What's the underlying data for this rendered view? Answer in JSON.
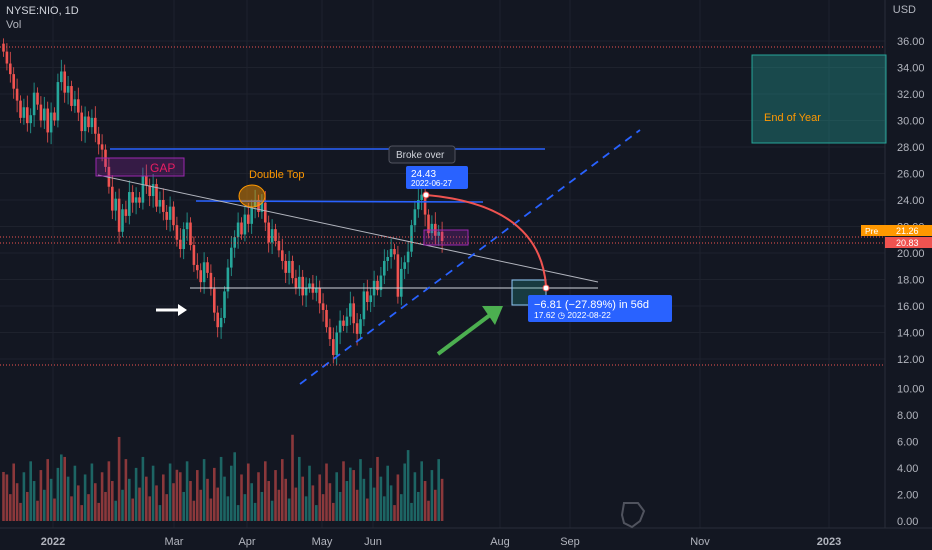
{
  "header": {
    "symbol": "NYSE:NIO, 1D",
    "volume_label": "Vol",
    "currency": "USD"
  },
  "price_axis": {
    "ticks": [
      "36.00",
      "34.00",
      "32.00",
      "30.00",
      "28.00",
      "26.00",
      "24.00",
      "22.00",
      "20.00",
      "18.00",
      "16.00",
      "14.00",
      "12.00"
    ]
  },
  "volume_axis": {
    "ticks": [
      "10.00",
      "8.00",
      "6.00",
      "4.00",
      "2.00",
      "0.00"
    ]
  },
  "time_axis": {
    "ticks": [
      "2022",
      "Mar",
      "Apr",
      "May",
      "Jun",
      "Aug",
      "Sep",
      "Nov",
      "2023"
    ]
  },
  "price_badges": {
    "pre_label": "Pre",
    "pre_value": "21.26",
    "last_value": "20.83"
  },
  "annotations": {
    "gap": "GAP",
    "double_top": "Double Top",
    "broke_over": "Broke over",
    "end_of_year": "End of Year",
    "price_label_value": "24.43",
    "price_label_date": "2022-06-27",
    "measure_line1": "−6.81 (−27.89%) in 56d",
    "measure_line2": "17.62 ◷ 2022-08-22"
  },
  "colors": {
    "up": "#26a69a",
    "down": "#ef5350",
    "blue": "#2962ff",
    "dashed": "#2962ff",
    "green_arrow": "#4caf50",
    "grid": "#1e222d"
  },
  "chart_data": {
    "type": "candlestick",
    "y_label": "USD",
    "ylim": [
      11,
      37
    ],
    "x_ticks": [
      "2022",
      "Mar",
      "Apr",
      "May",
      "Jun",
      "Aug",
      "Sep",
      "Nov",
      "2023"
    ],
    "closes": [
      35.2,
      34.3,
      33.5,
      32.4,
      31.5,
      30.2,
      31.0,
      29.8,
      30.4,
      32.1,
      31.2,
      30.0,
      30.9,
      29.1,
      30.6,
      30.0,
      32.9,
      33.7,
      32.1,
      32.6,
      31.1,
      31.6,
      30.6,
      29.2,
      30.3,
      29.5,
      30.2,
      29.0,
      28.2,
      27.8,
      26.5,
      25.0,
      23.2,
      24.1,
      21.6,
      23.3,
      22.8,
      24.6,
      23.8,
      24.2,
      23.8,
      25.8,
      25.1,
      24.3,
      25.2,
      23.5,
      24.0,
      23.1,
      22.5,
      23.5,
      22.1,
      21.0,
      20.3,
      21.8,
      22.3,
      20.6,
      19.1,
      18.7,
      17.8,
      19.3,
      18.5,
      17.3,
      15.5,
      14.4,
      15.1,
      17.1,
      18.9,
      20.4,
      21.2,
      22.3,
      21.4,
      22.9,
      22.2,
      23.5,
      24.0,
      23.1,
      23.8,
      22.3,
      20.8,
      21.8,
      20.9,
      20.2,
      19.4,
      18.5,
      19.4,
      18.1,
      17.4,
      18.2,
      16.8,
      17.4,
      17.7,
      17.0,
      17.4,
      16.2,
      15.7,
      14.4,
      13.5,
      12.3,
      14.0,
      14.9,
      14.5,
      15.2,
      16.2,
      14.7,
      13.9,
      15.0,
      17.1,
      16.3,
      16.8,
      17.9,
      17.2,
      18.3,
      19.4,
      19.7,
      20.3,
      19.9,
      16.7,
      18.8,
      19.3,
      20.1,
      22.1,
      23.3,
      24.0,
      24.4,
      22.9,
      21.5,
      22.2,
      21.3,
      21.6,
      20.9
    ]
  }
}
